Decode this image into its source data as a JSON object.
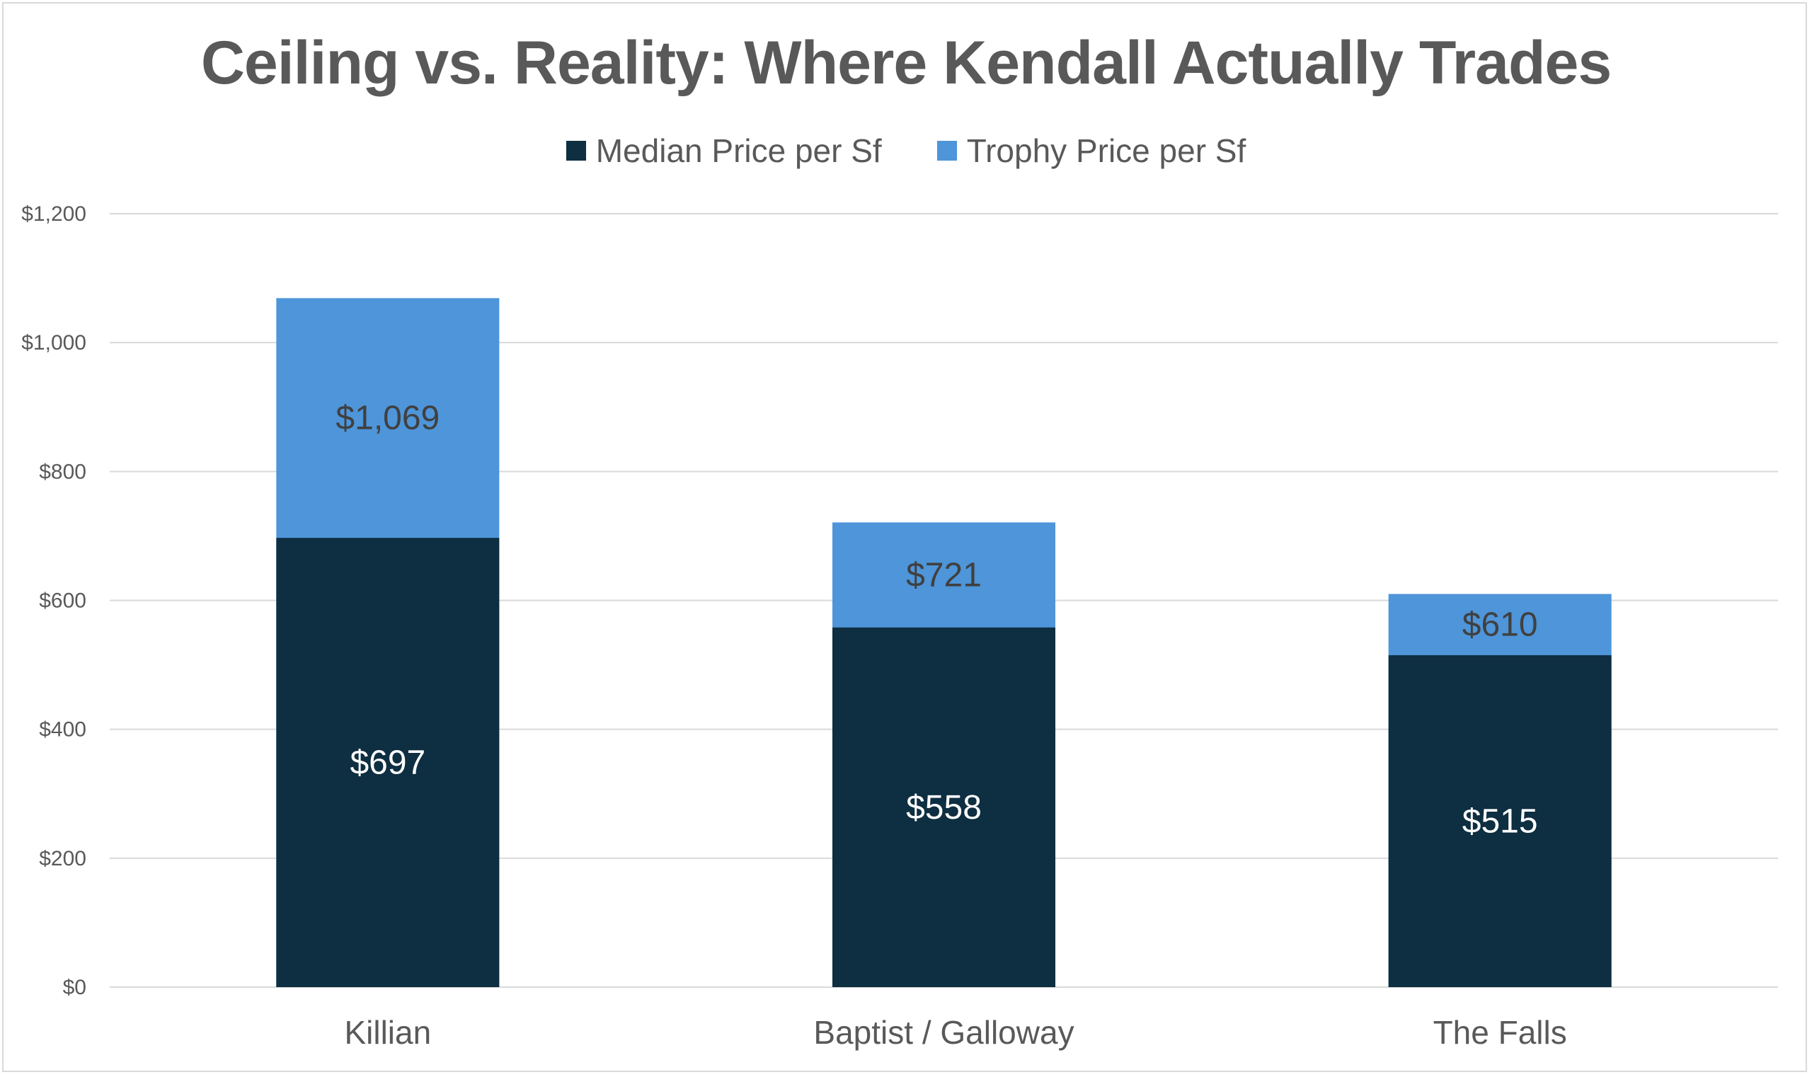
{
  "chart_data": {
    "type": "bar",
    "stacked": false,
    "overlap": true,
    "title": "Ceiling vs. Reality: Where Kendall Actually Trades",
    "categories": [
      "Killian",
      "Baptist / Galloway",
      "The Falls"
    ],
    "series": [
      {
        "name": "Median Price per Sf",
        "values": [
          697,
          558,
          515
        ],
        "labels": [
          "$697",
          "$558",
          "$515"
        ],
        "color": "#0e2e41",
        "label_color": "#ffffff"
      },
      {
        "name": "Trophy Price per Sf",
        "values": [
          1069,
          721,
          610
        ],
        "labels": [
          "$1,069",
          "$721",
          "$610"
        ],
        "color": "#4e95d9",
        "label_color": "#404040"
      }
    ],
    "ylim": [
      0,
      1200
    ],
    "yticks": [
      0,
      200,
      400,
      600,
      800,
      1000,
      1200
    ],
    "ytick_labels": [
      "$0",
      "$200",
      "$400",
      "$600",
      "$800",
      "$1,000",
      "$1,200"
    ],
    "xlabel": "",
    "ylabel": "",
    "grid": true,
    "legend_position": "top"
  },
  "colors": {
    "gridline": "#d9d9d9",
    "axis_text": "#595959",
    "title_text": "#595959"
  }
}
